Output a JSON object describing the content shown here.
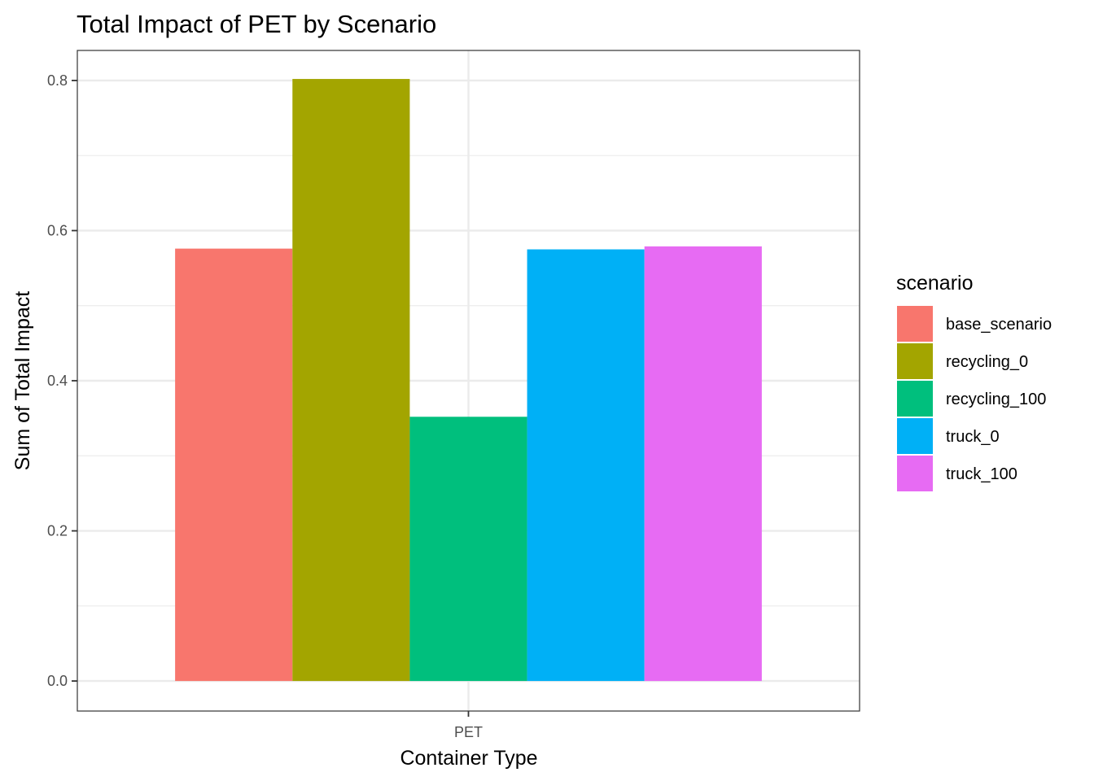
{
  "chart_data": {
    "type": "bar",
    "title": "Total Impact of PET by Scenario",
    "xlabel": "Container Type",
    "ylabel": "Sum of Total Impact",
    "categories": [
      "PET"
    ],
    "series": [
      {
        "name": "base_scenario",
        "values": [
          0.576
        ],
        "color": "#F8766D"
      },
      {
        "name": "recycling_0",
        "values": [
          0.802
        ],
        "color": "#A3A500"
      },
      {
        "name": "recycling_100",
        "values": [
          0.352
        ],
        "color": "#00BF7D"
      },
      {
        "name": "truck_0",
        "values": [
          0.575
        ],
        "color": "#00B0F6"
      },
      {
        "name": "truck_100",
        "values": [
          0.579
        ],
        "color": "#E76BF3"
      }
    ],
    "ylim": [
      -0.04,
      0.84
    ],
    "yticks": [
      0.0,
      0.2,
      0.4,
      0.6,
      0.8
    ],
    "ytick_labels": [
      "0.0",
      "0.2",
      "0.4",
      "0.6",
      "0.8"
    ],
    "grid": true,
    "legend": {
      "title": "scenario",
      "position": "right"
    }
  }
}
